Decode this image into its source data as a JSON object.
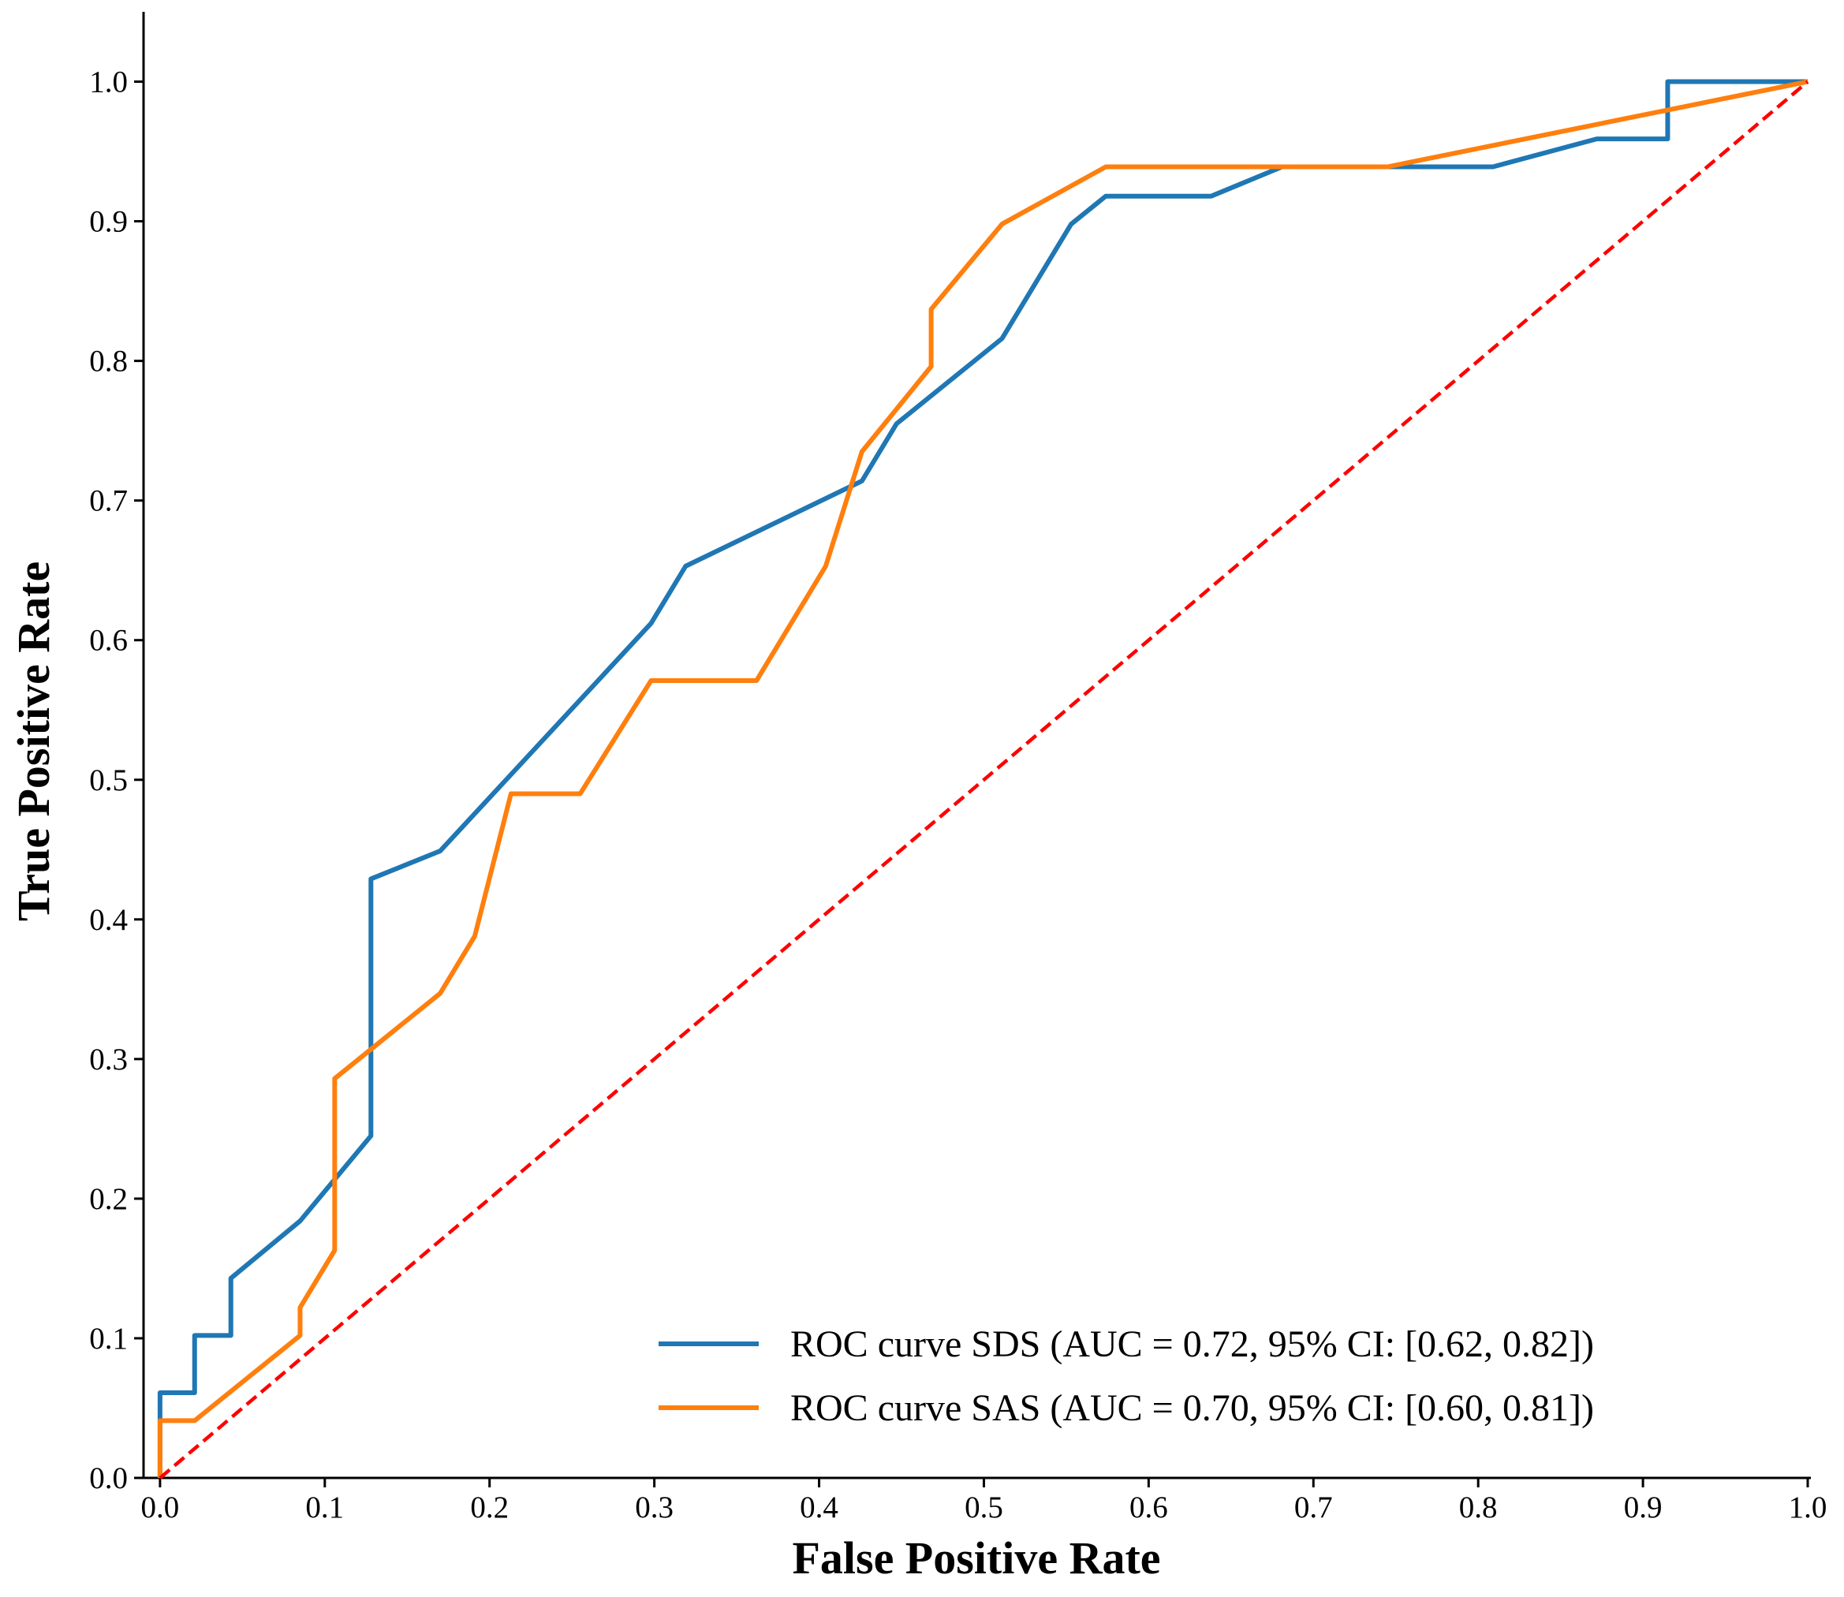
{
  "chart_data": {
    "type": "line",
    "xlabel": "False Positive Rate",
    "ylabel": "True Positive Rate",
    "xlim": [
      -0.01,
      1.0
    ],
    "ylim": [
      0,
      1.05
    ],
    "xticks": [
      "0.0",
      "0.1",
      "0.2",
      "0.3",
      "0.4",
      "0.5",
      "0.6",
      "0.7",
      "0.8",
      "0.9",
      "1.0"
    ],
    "yticks": [
      "0.0",
      "0.1",
      "0.2",
      "0.3",
      "0.4",
      "0.5",
      "0.6",
      "0.7",
      "0.8",
      "0.9",
      "1.0"
    ],
    "legend": "lower right",
    "series": [
      {
        "name": "ROC curve SDS (AUC = 0.72, 95% CI: [0.62, 0.82])",
        "color": "#1f77b4",
        "dash": false,
        "x": [
          0,
          0,
          0.021,
          0.021,
          0.043,
          0.043,
          0.085,
          0.128,
          0.128,
          0.17,
          0.298,
          0.319,
          0.426,
          0.447,
          0.511,
          0.553,
          0.574,
          0.638,
          0.681,
          0.809,
          0.872,
          0.915,
          0.915,
          1.0
        ],
        "values": [
          0,
          0.061,
          0.061,
          0.102,
          0.102,
          0.143,
          0.184,
          0.245,
          0.429,
          0.449,
          0.612,
          0.653,
          0.714,
          0.755,
          0.816,
          0.898,
          0.918,
          0.918,
          0.939,
          0.939,
          0.959,
          0.959,
          1.0,
          1.0
        ]
      },
      {
        "name": "ROC curve SAS (AUC = 0.70, 95% CI: [0.60, 0.81])",
        "color": "#ff7f0e",
        "dash": false,
        "x": [
          0,
          0,
          0.021,
          0.085,
          0.085,
          0.106,
          0.106,
          0.17,
          0.191,
          0.213,
          0.255,
          0.298,
          0.362,
          0.404,
          0.426,
          0.468,
          0.468,
          0.511,
          0.574,
          0.745,
          1.0
        ],
        "values": [
          0,
          0.041,
          0.041,
          0.102,
          0.122,
          0.163,
          0.286,
          0.347,
          0.388,
          0.49,
          0.49,
          0.571,
          0.571,
          0.653,
          0.735,
          0.796,
          0.837,
          0.898,
          0.939,
          0.939,
          1.0
        ]
      },
      {
        "color": "#ff0000",
        "dash": true,
        "x": [
          0,
          1
        ],
        "values": [
          0,
          1
        ]
      }
    ]
  }
}
